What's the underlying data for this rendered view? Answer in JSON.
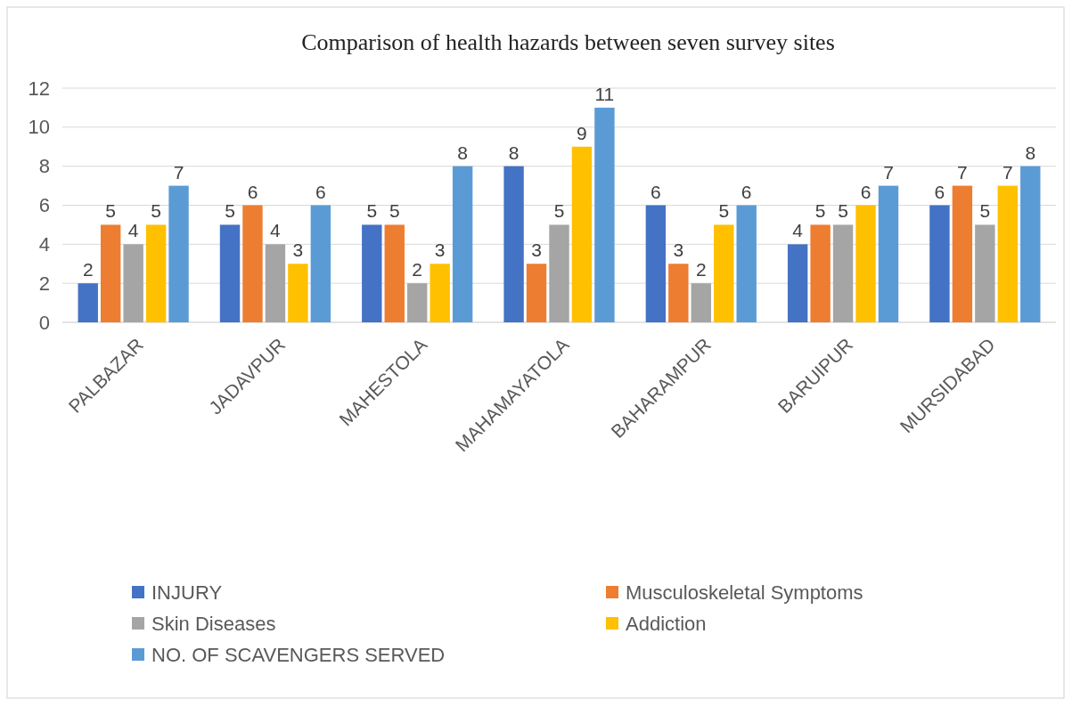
{
  "chart_data": {
    "type": "bar",
    "title": "Comparison of health hazards between seven survey sites",
    "categories": [
      "PALBAZAR",
      "JADAVPUR",
      "MAHESTOLA",
      "MAHAMAYATOLA",
      "BAHARAMPUR",
      "BARUIPUR",
      "MURSIDABAD"
    ],
    "series": [
      {
        "name": "INJURY",
        "color": "#4472c4",
        "values": [
          2,
          5,
          5,
          8,
          6,
          4,
          6
        ]
      },
      {
        "name": "Musculoskeletal Symptoms",
        "color": "#ed7d31",
        "values": [
          5,
          6,
          5,
          3,
          3,
          5,
          7
        ]
      },
      {
        "name": "Skin Diseases",
        "color": "#a5a5a5",
        "values": [
          4,
          4,
          2,
          5,
          2,
          5,
          5
        ]
      },
      {
        "name": "Addiction",
        "color": "#ffc000",
        "values": [
          5,
          3,
          3,
          9,
          5,
          6,
          7
        ]
      },
      {
        "name": "NO. OF SCAVENGERS SERVED",
        "color": "#5b9bd5",
        "values": [
          7,
          6,
          8,
          11,
          6,
          7,
          8
        ]
      }
    ],
    "ylim": [
      0,
      12
    ],
    "yticks": [
      0,
      2,
      4,
      6,
      8,
      10,
      12
    ],
    "grid": "y",
    "legend": "bottom",
    "data_labels": true
  }
}
